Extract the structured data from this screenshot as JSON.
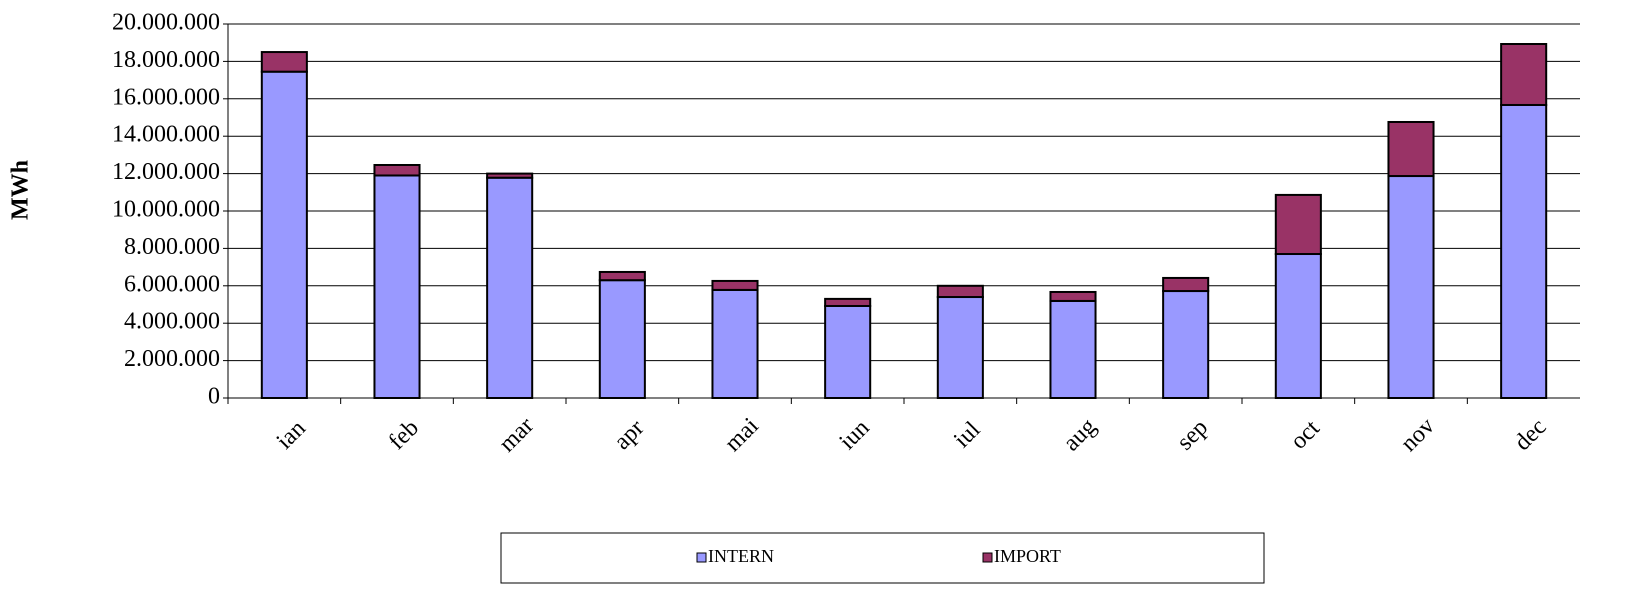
{
  "chart_data": {
    "type": "bar",
    "stacked": true,
    "y_label": "MWh",
    "categories": [
      "ian",
      "feb",
      "mar",
      "apr",
      "mai",
      "iun",
      "iul",
      "aug",
      "sep",
      "oct",
      "nov",
      "dec"
    ],
    "series": [
      {
        "name": "INTERN",
        "color": "#9999ff",
        "values": [
          17.45,
          11.9,
          11.78,
          6.3,
          5.78,
          4.92,
          5.4,
          5.19,
          5.72,
          7.7,
          11.87,
          15.67
        ]
      },
      {
        "name": "IMPORT",
        "color": "#993366",
        "values": [
          1.05,
          0.56,
          0.22,
          0.44,
          0.48,
          0.38,
          0.6,
          0.48,
          0.7,
          3.16,
          2.89,
          3.26
        ]
      }
    ],
    "ylim": [
      0,
      20
    ],
    "yticks": [
      0,
      {
        "value": 2,
        "label": "2.000.000"
      },
      {
        "value": 4,
        "label": "4.000.000"
      },
      {
        "value": 6,
        "label": "6.000.000"
      },
      {
        "value": 8,
        "label": "8.000.000"
      },
      {
        "value": 10,
        "label": "10.000.000"
      },
      {
        "value": 12,
        "label": "12.000.000"
      },
      {
        "value": 14,
        "label": "14.000.000"
      },
      {
        "value": 16,
        "label": "16.000.000"
      },
      {
        "value": 18,
        "label": "18.000.000"
      },
      {
        "value": 20,
        "label": "20.000.000"
      }
    ],
    "grid": true,
    "legend": "bottom"
  }
}
